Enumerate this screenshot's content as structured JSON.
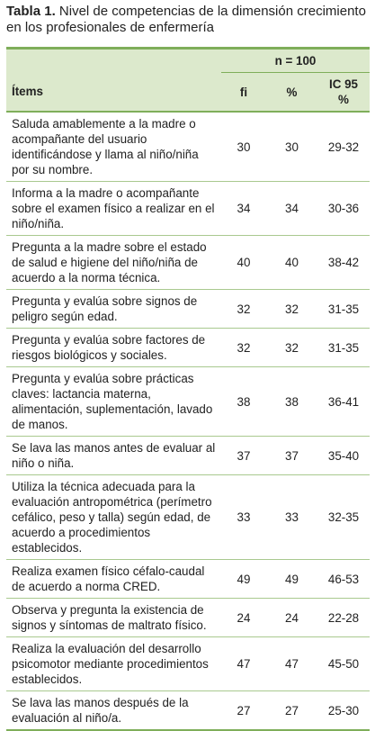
{
  "title_label": "Tabla 1.",
  "title_text": "Nivel de competencias de la dimensión crecimiento en los profesionales de enfermería",
  "table": {
    "n_header": "n = 100",
    "columns": [
      "Ítems",
      "fi",
      "%",
      "IC 95 %"
    ],
    "rows": [
      [
        "Saluda amablemente a la madre o acompañante del usuario identificándose y llama al niño/niña por su nombre.",
        30,
        30,
        "29-32"
      ],
      [
        "Informa a la madre o acompañante sobre el examen físico a realizar en el niño/niña.",
        34,
        34,
        "30-36"
      ],
      [
        "Pregunta a la madre sobre el estado de salud e higiene del niño/niña de acuerdo a la norma técnica.",
        40,
        40,
        "38-42"
      ],
      [
        "Pregunta y evalúa sobre signos de peligro según edad.",
        32,
        32,
        "31-35"
      ],
      [
        "Pregunta y evalúa sobre factores de riesgos biológicos y sociales.",
        32,
        32,
        "31-35"
      ],
      [
        "Pregunta y evalúa sobre prácticas claves: lactancia materna, alimentación, suplementación, lavado de manos.",
        38,
        38,
        "36-41"
      ],
      [
        "Se lava las manos antes de evaluar al niño o niña.",
        37,
        37,
        "35-40"
      ],
      [
        "Utiliza la técnica adecuada para la evaluación antropométrica (perímetro cefálico, peso y talla) según edad, de acuerdo a procedimientos establecidos.",
        33,
        33,
        "32-35"
      ],
      [
        "Realiza examen físico céfalo-caudal de acuerdo a norma CRED.",
        49,
        49,
        "46-53"
      ],
      [
        "Observa y pregunta la existencia de signos y síntomas de maltrato físico.",
        24,
        24,
        "22-28"
      ],
      [
        "Realiza la evaluación del desarrollo psicomotor mediante procedimientos establecidos.",
        47,
        47,
        "45-50"
      ],
      [
        "Se lava las manos después de la evaluación al niño/a.",
        27,
        27,
        "25-30"
      ]
    ]
  }
}
